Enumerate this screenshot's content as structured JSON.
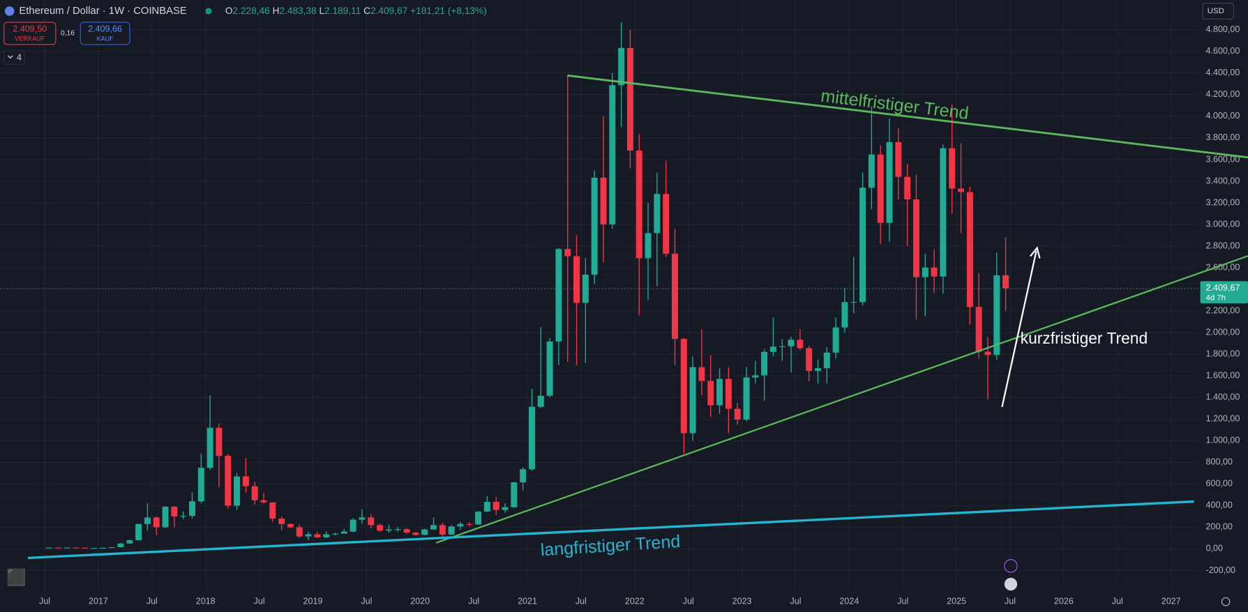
{
  "chart_data": {
    "type": "candlestick",
    "title": "Ethereum / Dollar · 1W · COINBASE",
    "header": {
      "ohlc": [
        {
          "label": "O",
          "value": "2.228,46"
        },
        {
          "label": "H",
          "value": "2.483,38"
        },
        {
          "label": "L",
          "value": "2.189,11"
        },
        {
          "label": "C",
          "value": "2.409,67"
        }
      ],
      "change": "+181,21 (+8,13%)",
      "sell": {
        "price": "2.409,50",
        "label": "VERKAUF"
      },
      "spread": "0,16",
      "buy": {
        "price": "2.409,66",
        "label": "KAUF"
      },
      "indicators": "4",
      "currency": "USD"
    },
    "annotations": [
      "mittelfristiger Trend",
      "kurzfristiger Trend",
      "langfristiger Trend"
    ],
    "last_price": {
      "value": 2409.67,
      "label": "2.409,67",
      "countdown": "4d 7h"
    },
    "up_color": "#22ab94",
    "down_color": "#f23645",
    "grid": true,
    "xlim": [
      "2016-02",
      "2027-04"
    ],
    "ylim": [
      -400,
      4870
    ],
    "xticks": [
      {
        "value": "2016-07",
        "label": "Jul"
      },
      {
        "value": "2017-01",
        "label": "2017"
      },
      {
        "value": "2017-07",
        "label": "Jul"
      },
      {
        "value": "2018-01",
        "label": "2018"
      },
      {
        "value": "2018-07",
        "label": "Jul"
      },
      {
        "value": "2019-01",
        "label": "2019"
      },
      {
        "value": "2019-07",
        "label": "Jul"
      },
      {
        "value": "2020-01",
        "label": "2020"
      },
      {
        "value": "2020-07",
        "label": "Jul"
      },
      {
        "value": "2021-01",
        "label": "2021"
      },
      {
        "value": "2021-07",
        "label": "Jul"
      },
      {
        "value": "2022-01",
        "label": "2022"
      },
      {
        "value": "2022-07",
        "label": "Jul"
      },
      {
        "value": "2023-01",
        "label": "2023"
      },
      {
        "value": "2023-07",
        "label": "Jul"
      },
      {
        "value": "2024-01",
        "label": "2024"
      },
      {
        "value": "2024-07",
        "label": "Jul"
      },
      {
        "value": "2025-01",
        "label": "2025"
      },
      {
        "value": "2025-07",
        "label": "Jul"
      },
      {
        "value": "2026-01",
        "label": "2026"
      },
      {
        "value": "2026-07",
        "label": "Jul"
      },
      {
        "value": "2027-01",
        "label": "2027"
      }
    ],
    "yticks": [
      {
        "value": -200,
        "label": "-200,00"
      },
      {
        "value": 0,
        "label": "0,00"
      },
      {
        "value": 200,
        "label": "200,00"
      },
      {
        "value": 400,
        "label": "400,00"
      },
      {
        "value": 600,
        "label": "600,00"
      },
      {
        "value": 800,
        "label": "800,00"
      },
      {
        "value": 1000,
        "label": "1.000,00"
      },
      {
        "value": 1200,
        "label": "1.200,00"
      },
      {
        "value": 1400,
        "label": "1.400,00"
      },
      {
        "value": 1600,
        "label": "1.600,00"
      },
      {
        "value": 1800,
        "label": "1.800,00"
      },
      {
        "value": 2000,
        "label": "2.000,00"
      },
      {
        "value": 2200,
        "label": "2.200,00"
      },
      {
        "value": 2400,
        "label": "2.400,00"
      },
      {
        "value": 2600,
        "label": "2.600,00"
      },
      {
        "value": 2800,
        "label": "2.800,00"
      },
      {
        "value": 3000,
        "label": "3.000,00"
      },
      {
        "value": 3200,
        "label": "3.200,00"
      },
      {
        "value": 3400,
        "label": "3.400,00"
      },
      {
        "value": 3600,
        "label": "3.600,00"
      },
      {
        "value": 3800,
        "label": "3.800,00"
      },
      {
        "value": 4000,
        "label": "4.000,00"
      },
      {
        "value": 4200,
        "label": "4.200,00"
      },
      {
        "value": 4400,
        "label": "4.400,00"
      },
      {
        "value": 4600,
        "label": "4.600,00"
      },
      {
        "value": 4800,
        "label": "4.800,00"
      }
    ],
    "x": [
      "2016-07",
      "2016-08",
      "2016-09",
      "2016-10",
      "2016-11",
      "2016-12",
      "2017-01",
      "2017-02",
      "2017-03",
      "2017-04",
      "2017-05",
      "2017-06",
      "2017-07",
      "2017-08",
      "2017-09",
      "2017-10",
      "2017-11",
      "2017-12",
      "2018-01",
      "2018-02",
      "2018-03",
      "2018-04",
      "2018-05",
      "2018-06",
      "2018-07",
      "2018-08",
      "2018-09",
      "2018-10",
      "2018-11",
      "2018-12",
      "2019-01",
      "2019-02",
      "2019-03",
      "2019-04",
      "2019-05",
      "2019-06",
      "2019-07",
      "2019-08",
      "2019-09",
      "2019-10",
      "2019-11",
      "2019-12",
      "2020-01",
      "2020-02",
      "2020-03",
      "2020-04",
      "2020-05",
      "2020-06",
      "2020-07",
      "2020-08",
      "2020-09",
      "2020-10",
      "2020-11",
      "2020-12",
      "2021-01",
      "2021-02",
      "2021-03",
      "2021-04",
      "2021-05",
      "2021-06",
      "2021-07",
      "2021-08",
      "2021-09",
      "2021-10",
      "2021-11",
      "2021-12",
      "2022-01",
      "2022-02",
      "2022-03",
      "2022-04",
      "2022-05",
      "2022-06",
      "2022-07",
      "2022-08",
      "2022-09",
      "2022-10",
      "2022-11",
      "2022-12",
      "2023-01",
      "2023-02",
      "2023-03",
      "2023-04",
      "2023-05",
      "2023-06",
      "2023-07",
      "2023-08",
      "2023-09",
      "2023-10",
      "2023-11",
      "2023-12",
      "2024-01",
      "2024-02",
      "2024-03",
      "2024-04",
      "2024-05",
      "2024-06",
      "2024-07",
      "2024-08",
      "2024-09",
      "2024-10",
      "2024-11",
      "2024-12",
      "2025-01",
      "2025-02",
      "2025-03",
      "2025-04",
      "2025-05",
      "2025-06"
    ],
    "open": [
      11,
      12,
      11,
      13,
      11,
      8,
      8,
      10,
      16,
      50,
      80,
      230,
      290,
      200,
      390,
      300,
      305,
      440,
      750,
      1120,
      860,
      400,
      670,
      580,
      450,
      430,
      280,
      230,
      200,
      115,
      135,
      107,
      135,
      141,
      160,
      270,
      290,
      220,
      170,
      180,
      182,
      150,
      130,
      180,
      220,
      133,
      207,
      230,
      226,
      345,
      435,
      360,
      385,
      615,
      737,
      1314,
      1416,
      1918,
      2773,
      2707,
      2275,
      2536,
      3433,
      3000,
      4288,
      4632,
      3683,
      2688,
      2920,
      3282,
      2730,
      1942,
      1070,
      1680,
      1553,
      1328,
      1572,
      1295,
      1196,
      1585,
      1605,
      1822,
      1870,
      1874,
      1934,
      1857,
      1645,
      1671,
      1815,
      2048,
      2282,
      2283,
      3340,
      3647,
      3014,
      3762,
      3440,
      3232,
      2513,
      2602,
      2519,
      3705,
      3332,
      3300,
      2237,
      1823,
      1793,
      2530
    ],
    "high": [
      14,
      13,
      14,
      14,
      11,
      9,
      11,
      17,
      55,
      85,
      235,
      420,
      300,
      395,
      395,
      345,
      520,
      880,
      1420,
      1160,
      880,
      700,
      840,
      620,
      520,
      430,
      300,
      235,
      225,
      160,
      160,
      165,
      150,
      185,
      285,
      365,
      320,
      235,
      225,
      200,
      190,
      155,
      185,
      290,
      240,
      220,
      250,
      250,
      350,
      490,
      480,
      420,
      620,
      755,
      1480,
      2050,
      1950,
      2780,
      4380,
      2900,
      2690,
      3500,
      4000,
      4400,
      4870,
      4800,
      3840,
      3200,
      3480,
      3590,
      2960,
      1950,
      1780,
      2030,
      1790,
      1670,
      1680,
      1350,
      1680,
      1740,
      1850,
      2140,
      1940,
      1960,
      2030,
      1880,
      1750,
      1865,
      2140,
      2410,
      2700,
      3480,
      4090,
      3730,
      3980,
      3890,
      3560,
      3460,
      2730,
      2770,
      3740,
      4110,
      3750,
      3350,
      2550,
      1960,
      2740,
      2880
    ],
    "low": [
      10,
      10,
      11,
      10,
      7,
      7,
      8,
      10,
      15,
      47,
      80,
      170,
      130,
      190,
      200,
      275,
      280,
      420,
      730,
      570,
      370,
      360,
      520,
      410,
      420,
      250,
      170,
      190,
      100,
      82,
      100,
      100,
      125,
      140,
      155,
      230,
      190,
      160,
      150,
      160,
      140,
      120,
      125,
      175,
      90,
      130,
      175,
      210,
      220,
      340,
      310,
      335,
      380,
      540,
      720,
      1300,
      1400,
      1700,
      1730,
      1700,
      1720,
      2450,
      2650,
      2960,
      3900,
      3520,
      2160,
      2300,
      2430,
      2700,
      1700,
      880,
      1000,
      1420,
      1220,
      1250,
      1070,
      1150,
      1180,
      1530,
      1370,
      1780,
      1740,
      1630,
      1840,
      1550,
      1530,
      1530,
      1760,
      2000,
      2180,
      2250,
      3140,
      2820,
      2840,
      3230,
      2800,
      2120,
      2150,
      2370,
      2360,
      3100,
      2920,
      2070,
      1760,
      1385,
      1750,
      2200
    ],
    "close": [
      12,
      11,
      13,
      11,
      8,
      8,
      10,
      16,
      50,
      80,
      230,
      290,
      200,
      390,
      300,
      305,
      440,
      750,
      1120,
      860,
      400,
      670,
      580,
      450,
      430,
      280,
      230,
      200,
      115,
      135,
      107,
      135,
      141,
      160,
      270,
      290,
      220,
      170,
      180,
      182,
      150,
      130,
      180,
      220,
      133,
      207,
      230,
      226,
      345,
      435,
      360,
      385,
      615,
      737,
      1314,
      1416,
      1918,
      2773,
      2707,
      2275,
      2536,
      3433,
      3000,
      4288,
      4632,
      3683,
      2688,
      2920,
      3282,
      2730,
      1942,
      1070,
      1680,
      1553,
      1328,
      1572,
      1295,
      1196,
      1585,
      1605,
      1822,
      1870,
      1874,
      1934,
      1857,
      1645,
      1671,
      1815,
      2048,
      2282,
      2283,
      3340,
      3647,
      3014,
      3762,
      3440,
      3232,
      2513,
      2602,
      2519,
      3705,
      3332,
      3300,
      2237,
      1823,
      1793,
      2530,
      2409.67
    ]
  }
}
